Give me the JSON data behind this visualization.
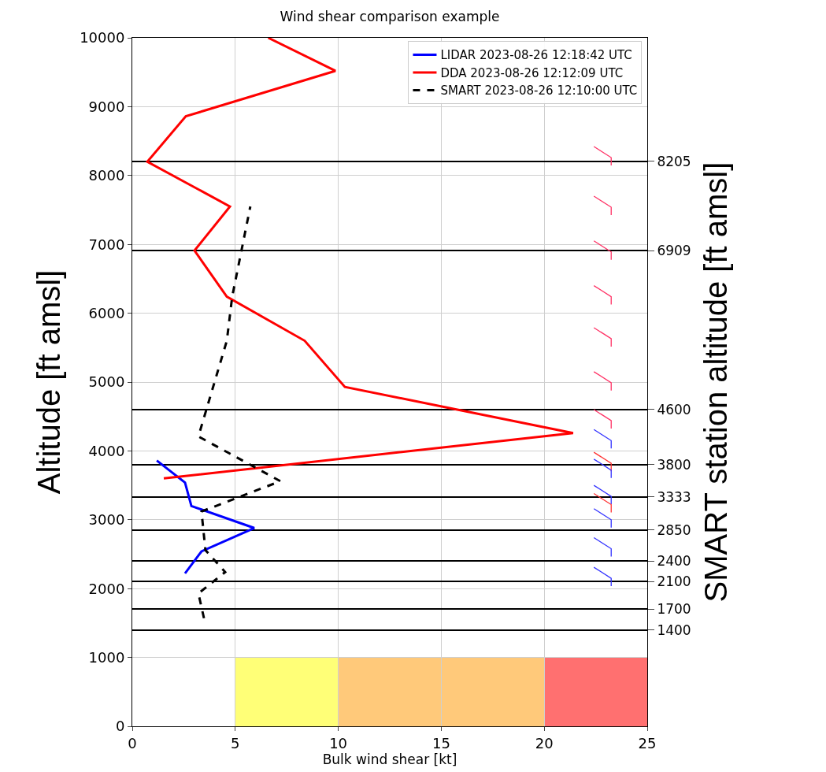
{
  "chart_data": {
    "type": "line",
    "title": "Wind shear comparison example",
    "xlabel": "Bulk wind shear [kt]",
    "ylabel": "Altitude [ft amsl]",
    "y2label": "SMART station altitude [ft amsl]",
    "xlim": [
      0,
      25
    ],
    "xticks": [
      0,
      5,
      10,
      15,
      20,
      25
    ],
    "ylim": [
      0,
      10000
    ],
    "yticks": [
      0,
      1000,
      2000,
      3000,
      4000,
      5000,
      6000,
      7000,
      8000,
      9000,
      10000
    ],
    "y2lim": [
      0,
      10000
    ],
    "y2ticks": [
      8205,
      6909,
      4600,
      3800,
      3333,
      2850,
      2400,
      2100,
      1700,
      1400
    ],
    "grid": true,
    "legend": "top right",
    "series": [
      {
        "name": "LIDAR 2023-08-26 12:18:42 UTC",
        "color": "#0000ff",
        "line_style": "solid",
        "x": [
          2.56,
          3.36,
          5.92,
          2.87,
          2.56,
          1.19
        ],
        "values": [
          2220,
          2540,
          2880,
          3200,
          3540,
          3860
        ]
      },
      {
        "name": "DDA 2023-08-26 12:12:09 UTC",
        "color": "#ff0000",
        "line_style": "solid",
        "x": [
          1.53,
          21.4,
          10.32,
          8.37,
          4.59,
          3.02,
          4.74,
          0.73,
          2.6,
          9.86,
          6.6
        ],
        "values": [
          3600,
          4260,
          4930,
          5600,
          6240,
          6910,
          7550,
          8200,
          8860,
          9520,
          10000
        ]
      },
      {
        "name": "SMART 2023-08-26 12:10:00 UTC",
        "color": "#000000",
        "line_style": "dashed",
        "x": [
          3.48,
          3.21,
          4.51,
          3.55,
          3.36,
          7.19,
          3.21,
          4.59,
          4.85,
          5.73
        ],
        "values": [
          1570,
          1930,
          2240,
          2560,
          3120,
          3560,
          4210,
          5600,
          6240,
          7550
        ]
      }
    ],
    "bands": [
      {
        "axis": "x",
        "from": 5,
        "to": 10,
        "color": "#ffff77"
      },
      {
        "axis": "x",
        "from": 10,
        "to": 20,
        "color": "#ffc97a"
      },
      {
        "axis": "x",
        "from": 20,
        "to": 25,
        "color": "#ff7070"
      }
    ]
  }
}
